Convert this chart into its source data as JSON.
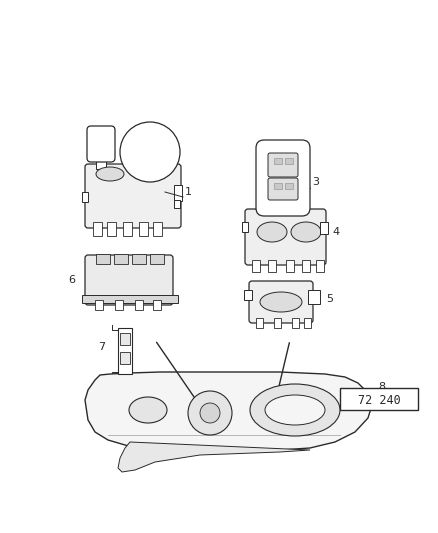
{
  "background_color": "#ffffff",
  "fig_width": 4.38,
  "fig_height": 5.33,
  "dpi": 100,
  "diagram_code": "72 240",
  "line_color": "#2a2a2a",
  "fill_light": "#f8f8f8",
  "fill_mid": "#e8e8e8"
}
